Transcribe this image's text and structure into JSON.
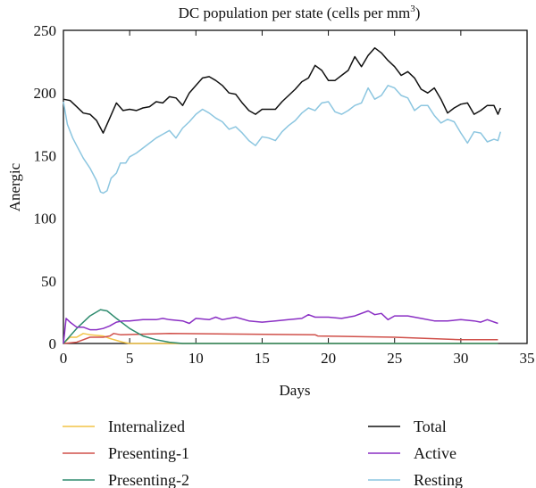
{
  "chart_data": {
    "type": "line",
    "title": "DC population per state (cells per mm",
    "title_superscript": "3",
    "title_close": ")",
    "xlabel": "Days",
    "ylabel": "Anergic",
    "xlim": [
      0,
      35
    ],
    "ylim": [
      0,
      250
    ],
    "xticks": [
      0,
      5,
      10,
      15,
      20,
      25,
      30,
      35
    ],
    "yticks": [
      0,
      50,
      100,
      150,
      200,
      250
    ],
    "grid": false,
    "legend_position": "bottom",
    "series": [
      {
        "name": "Internalized",
        "color": "#f2c447",
        "points": [
          [
            0,
            0
          ],
          [
            0.5,
            5
          ],
          [
            1,
            5
          ],
          [
            1.5,
            8
          ],
          [
            2,
            7
          ],
          [
            3,
            6
          ],
          [
            3.5,
            4
          ],
          [
            4.5,
            1
          ],
          [
            5,
            0
          ],
          [
            32.8,
            0
          ]
        ]
      },
      {
        "name": "Presenting-1",
        "color": "#d0504a",
        "points": [
          [
            0,
            0
          ],
          [
            1,
            1
          ],
          [
            2,
            5
          ],
          [
            3,
            5
          ],
          [
            3.5,
            6
          ],
          [
            3.8,
            8
          ],
          [
            4.3,
            7
          ],
          [
            8,
            8
          ],
          [
            19,
            7
          ],
          [
            19.2,
            6
          ],
          [
            25,
            5
          ],
          [
            30,
            3
          ],
          [
            32.8,
            3
          ]
        ]
      },
      {
        "name": "Presenting-2",
        "color": "#2e8b6e",
        "points": [
          [
            0,
            0
          ],
          [
            1,
            12
          ],
          [
            2,
            22
          ],
          [
            2.8,
            27
          ],
          [
            3.3,
            26
          ],
          [
            4,
            20
          ],
          [
            5,
            12
          ],
          [
            6,
            6
          ],
          [
            7,
            3
          ],
          [
            8,
            1
          ],
          [
            9,
            0
          ],
          [
            32.8,
            0
          ]
        ]
      },
      {
        "name": "Total",
        "color": "#111111",
        "points": [
          [
            0,
            195
          ],
          [
            0.5,
            194
          ],
          [
            1,
            189
          ],
          [
            1.5,
            184
          ],
          [
            2,
            183
          ],
          [
            2.5,
            178
          ],
          [
            3,
            168
          ],
          [
            3.5,
            180
          ],
          [
            4,
            192
          ],
          [
            4.5,
            186
          ],
          [
            5,
            187
          ],
          [
            5.5,
            186
          ],
          [
            6,
            188
          ],
          [
            6.5,
            189
          ],
          [
            7,
            193
          ],
          [
            7.5,
            192
          ],
          [
            8,
            197
          ],
          [
            8.5,
            196
          ],
          [
            9,
            190
          ],
          [
            9.5,
            200
          ],
          [
            10,
            206
          ],
          [
            10.5,
            212
          ],
          [
            11,
            213
          ],
          [
            11.5,
            210
          ],
          [
            12,
            206
          ],
          [
            12.5,
            200
          ],
          [
            13,
            199
          ],
          [
            13.5,
            192
          ],
          [
            14,
            186
          ],
          [
            14.5,
            183
          ],
          [
            15,
            187
          ],
          [
            15.5,
            187
          ],
          [
            16,
            187
          ],
          [
            16.5,
            193
          ],
          [
            17,
            198
          ],
          [
            17.5,
            203
          ],
          [
            18,
            209
          ],
          [
            18.5,
            212
          ],
          [
            19,
            222
          ],
          [
            19.5,
            218
          ],
          [
            20,
            210
          ],
          [
            20.5,
            210
          ],
          [
            21,
            214
          ],
          [
            21.5,
            218
          ],
          [
            22,
            229
          ],
          [
            22.5,
            221
          ],
          [
            23,
            230
          ],
          [
            23.5,
            236
          ],
          [
            24,
            232
          ],
          [
            24.5,
            226
          ],
          [
            25,
            221
          ],
          [
            25.5,
            214
          ],
          [
            26,
            217
          ],
          [
            26.5,
            212
          ],
          [
            27,
            203
          ],
          [
            27.5,
            200
          ],
          [
            28,
            204
          ],
          [
            28.5,
            195
          ],
          [
            29,
            184
          ],
          [
            29.5,
            188
          ],
          [
            30,
            191
          ],
          [
            30.5,
            192
          ],
          [
            31,
            183
          ],
          [
            31.5,
            186
          ],
          [
            32,
            190
          ],
          [
            32.5,
            190
          ],
          [
            32.8,
            183
          ],
          [
            33,
            188
          ]
        ]
      },
      {
        "name": "Active",
        "color": "#8a2fc4",
        "points": [
          [
            0,
            0
          ],
          [
            0.2,
            20
          ],
          [
            0.5,
            17
          ],
          [
            1,
            13
          ],
          [
            1.5,
            13
          ],
          [
            2,
            11
          ],
          [
            2.5,
            11
          ],
          [
            3,
            12
          ],
          [
            3.5,
            14
          ],
          [
            4,
            17
          ],
          [
            4.5,
            18
          ],
          [
            5,
            18
          ],
          [
            6,
            19
          ],
          [
            7,
            19
          ],
          [
            7.5,
            20
          ],
          [
            8,
            19
          ],
          [
            9,
            18
          ],
          [
            9.5,
            16
          ],
          [
            10,
            20
          ],
          [
            11,
            19
          ],
          [
            11.5,
            21
          ],
          [
            12,
            19
          ],
          [
            13,
            21
          ],
          [
            14,
            18
          ],
          [
            15,
            17
          ],
          [
            16,
            18
          ],
          [
            17,
            19
          ],
          [
            18,
            20
          ],
          [
            18.5,
            23
          ],
          [
            19,
            21
          ],
          [
            20,
            21
          ],
          [
            21,
            20
          ],
          [
            22,
            22
          ],
          [
            23,
            26
          ],
          [
            23.5,
            23
          ],
          [
            24,
            24
          ],
          [
            24.5,
            19
          ],
          [
            25,
            22
          ],
          [
            26,
            22
          ],
          [
            27,
            20
          ],
          [
            28,
            18
          ],
          [
            29,
            18
          ],
          [
            30,
            19
          ],
          [
            31,
            18
          ],
          [
            31.5,
            17
          ],
          [
            32,
            19
          ],
          [
            32.8,
            16
          ]
        ]
      },
      {
        "name": "Resting",
        "color": "#8cc6e0",
        "points": [
          [
            0,
            193
          ],
          [
            0.3,
            175
          ],
          [
            0.7,
            164
          ],
          [
            1,
            158
          ],
          [
            1.5,
            148
          ],
          [
            2,
            140
          ],
          [
            2.5,
            130
          ],
          [
            2.8,
            121
          ],
          [
            3,
            120
          ],
          [
            3.3,
            122
          ],
          [
            3.6,
            132
          ],
          [
            4,
            136
          ],
          [
            4.3,
            144
          ],
          [
            4.7,
            144
          ],
          [
            5,
            149
          ],
          [
            5.5,
            152
          ],
          [
            6,
            156
          ],
          [
            6.5,
            160
          ],
          [
            7,
            164
          ],
          [
            7.5,
            167
          ],
          [
            8,
            170
          ],
          [
            8.5,
            164
          ],
          [
            9,
            172
          ],
          [
            9.5,
            177
          ],
          [
            10,
            183
          ],
          [
            10.5,
            187
          ],
          [
            11,
            184
          ],
          [
            11.5,
            180
          ],
          [
            12,
            177
          ],
          [
            12.5,
            171
          ],
          [
            13,
            173
          ],
          [
            13.5,
            168
          ],
          [
            14,
            162
          ],
          [
            14.5,
            158
          ],
          [
            15,
            165
          ],
          [
            15.5,
            164
          ],
          [
            16,
            162
          ],
          [
            16.5,
            169
          ],
          [
            17,
            174
          ],
          [
            17.5,
            178
          ],
          [
            18,
            184
          ],
          [
            18.5,
            188
          ],
          [
            19,
            186
          ],
          [
            19.5,
            192
          ],
          [
            20,
            193
          ],
          [
            20.5,
            185
          ],
          [
            21,
            183
          ],
          [
            21.5,
            186
          ],
          [
            22,
            190
          ],
          [
            22.5,
            192
          ],
          [
            23,
            204
          ],
          [
            23.5,
            195
          ],
          [
            24,
            198
          ],
          [
            24.5,
            206
          ],
          [
            25,
            204
          ],
          [
            25.5,
            198
          ],
          [
            26,
            196
          ],
          [
            26.5,
            186
          ],
          [
            27,
            190
          ],
          [
            27.5,
            190
          ],
          [
            28,
            182
          ],
          [
            28.5,
            176
          ],
          [
            29,
            179
          ],
          [
            29.5,
            177
          ],
          [
            30,
            168
          ],
          [
            30.5,
            160
          ],
          [
            31,
            169
          ],
          [
            31.5,
            168
          ],
          [
            32,
            161
          ],
          [
            32.5,
            163
          ],
          [
            32.8,
            162
          ],
          [
            33,
            169
          ]
        ]
      }
    ]
  }
}
